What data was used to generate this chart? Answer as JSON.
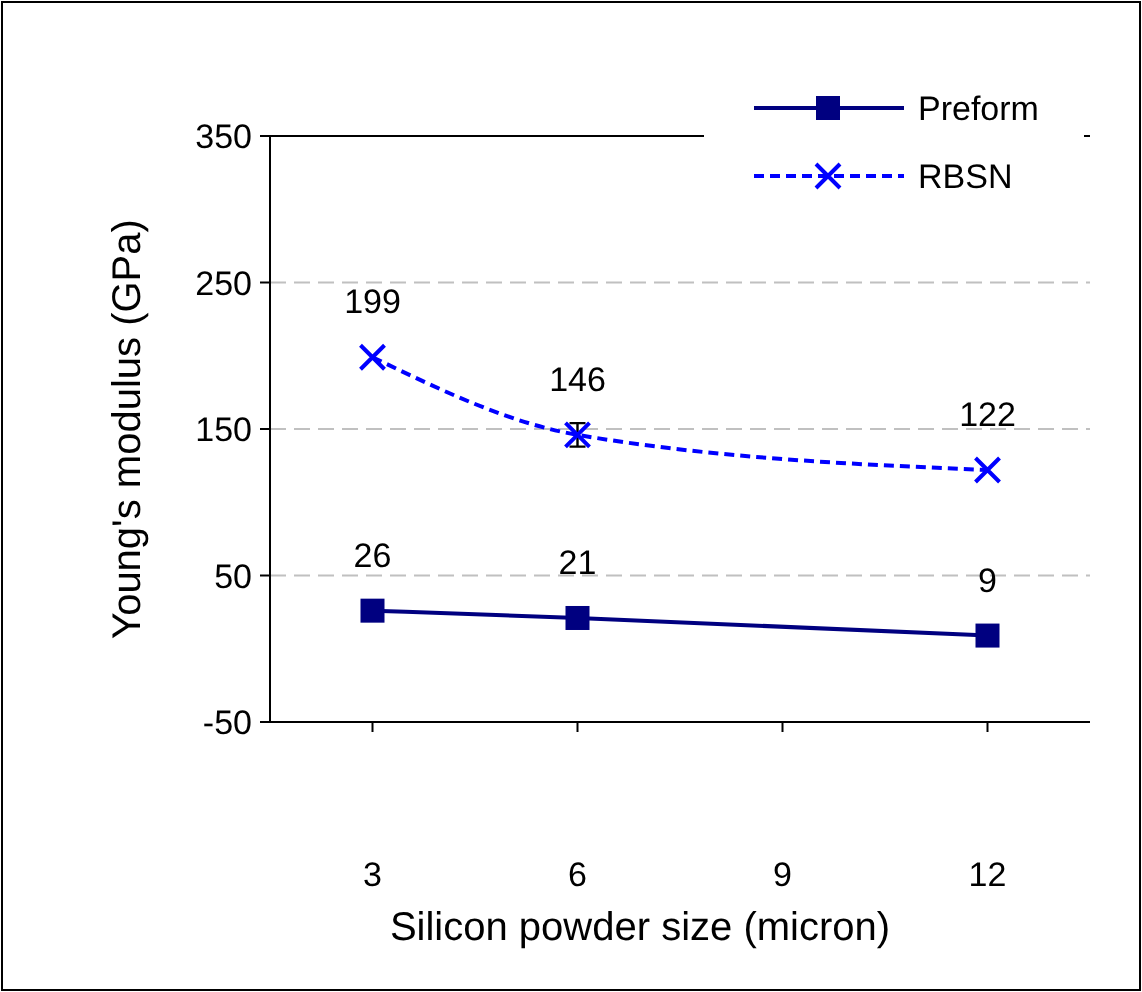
{
  "chart_data": {
    "type": "line",
    "xlabel": "Silicon powder size (micron)",
    "ylabel": "Young's modulus (GPa)",
    "x": [
      3,
      6,
      12
    ],
    "xlim": [
      1.5,
      13.5
    ],
    "xticks": [
      3,
      6,
      9,
      12
    ],
    "ylim": [
      -50,
      350
    ],
    "yticks": [
      -50,
      50,
      150,
      250,
      350
    ],
    "grid": "y",
    "legend": "top right",
    "data_labels": true,
    "series": [
      {
        "name": "Preform",
        "color": "#000080",
        "values": [
          26,
          21,
          9
        ],
        "marker": "square",
        "line_style": "solid"
      },
      {
        "name": "RBSN",
        "color": "#0000ff",
        "values": [
          199,
          146,
          122
        ],
        "errors": [
          null,
          8,
          null
        ],
        "marker": "cross",
        "line_style": "dashed"
      }
    ]
  }
}
